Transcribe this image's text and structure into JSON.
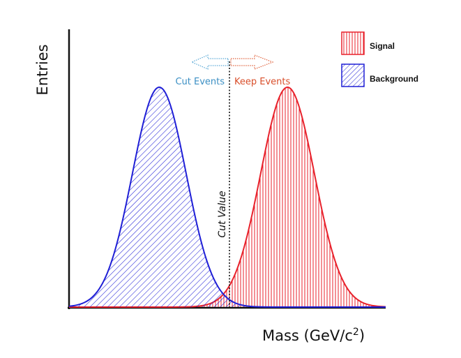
{
  "chart_data": {
    "type": "area",
    "x_label": "Mass (GeV/c",
    "x_label_sup": "2",
    "x_label_end": ")",
    "y_label": "Entries",
    "cut_value_label": "Cut Value",
    "left_arrow_label": "Cut Events",
    "right_arrow_label": "Keep Events",
    "grid": false,
    "legend_position": "top-right",
    "series": [
      {
        "name": "Signal",
        "color": "#e8212b",
        "fill": "vertical-hatch",
        "mean": 0.69,
        "sigma": 0.085,
        "peak": 1.0
      },
      {
        "name": "Background",
        "color": "#1f1fd6",
        "fill": "diagonal-hatch",
        "mean": 0.285,
        "sigma": 0.085,
        "peak": 1.0
      }
    ],
    "cut_position": 0.49,
    "colors": {
      "left_arrow": "#5aa9d6",
      "right_arrow": "#e0623c",
      "axis": "#111111"
    }
  }
}
